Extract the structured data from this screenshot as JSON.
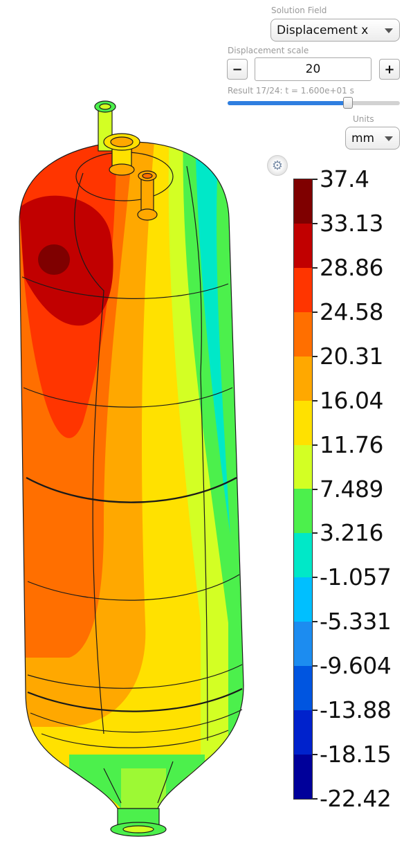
{
  "controls": {
    "solution_field_label": "Solution Field",
    "solution_field_value": "Displacement x",
    "displacement_scale_label": "Displacement scale",
    "displacement_scale_value": "20",
    "minus_label": "−",
    "plus_label": "+",
    "result_text": "Result 17/24: t = 1.600e+01 s",
    "result_slider_fraction": 0.7,
    "units_label": "Units",
    "units_value": "mm"
  },
  "legend": {
    "tick_labels": [
      "37.4",
      "33.13",
      "28.86",
      "24.58",
      "20.31",
      "16.04",
      "11.76",
      "7.489",
      "3.216",
      "-1.057",
      "-5.331",
      "-9.604",
      "-13.88",
      "-18.15",
      "-22.42"
    ],
    "colors": [
      "#7f0000",
      "#c10000",
      "#ff3500",
      "#ff6f00",
      "#ffa800",
      "#ffe100",
      "#d3ff24",
      "#4cf04c",
      "#00e8c8",
      "#00bfff",
      "#1c8cf0",
      "#0055e0",
      "#0022cc",
      "#00009a"
    ]
  },
  "icons": {
    "settings": "gear-icon"
  }
}
